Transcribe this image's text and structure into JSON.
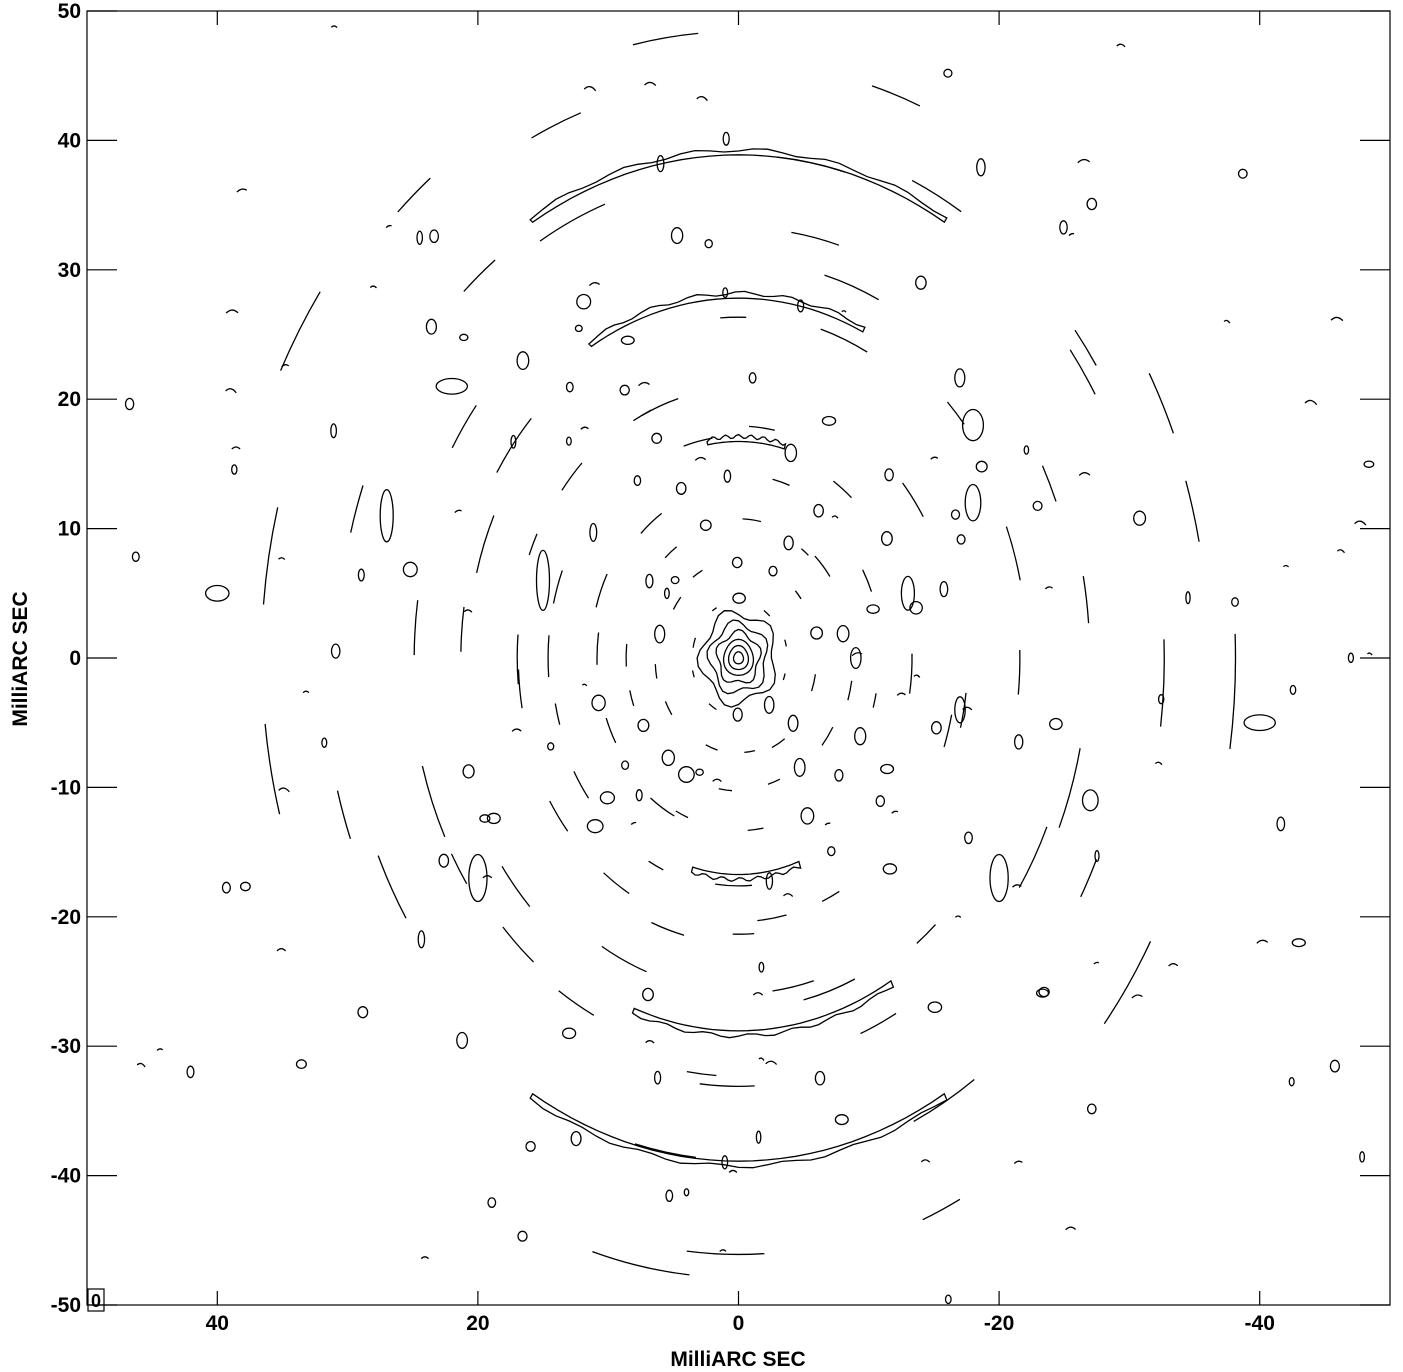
{
  "chart_data": {
    "type": "contour",
    "xlabel": "MilliARC SEC",
    "ylabel": "MilliARC SEC",
    "xlim": [
      50,
      -50
    ],
    "ylim": [
      -50,
      50
    ],
    "x_ticks": [
      40,
      20,
      0,
      -20,
      -40
    ],
    "x_tick_labels": [
      "40",
      "20",
      "0",
      "-20",
      "-40"
    ],
    "y_ticks": [
      50,
      40,
      30,
      20,
      10,
      0,
      -10,
      -20,
      -30,
      -40,
      -50
    ],
    "y_tick_labels": [
      "50",
      "40",
      "30",
      "20",
      "10",
      "0",
      "-10",
      "-20",
      "-30",
      "-40",
      "-50"
    ],
    "beam_label": "0",
    "peak": {
      "x": 0,
      "y": 0
    },
    "core_levels_radii_mas": [
      0.4,
      0.8,
      1.2,
      1.7,
      2.3,
      3.0
    ],
    "rings": [
      {
        "radius_mas": 4.5,
        "arcs": 10
      },
      {
        "radius_mas": 7.5,
        "arcs": 14
      },
      {
        "radius_mas": 10.5,
        "arcs": 16
      },
      {
        "radius_mas": 13.5,
        "arcs": 18
      },
      {
        "radius_mas": 17.0,
        "arcs": 20
      },
      {
        "radius_mas": 21.0,
        "arcs": 20
      },
      {
        "radius_mas": 26.5,
        "arcs": 22
      },
      {
        "radius_mas": 31.5,
        "arcs": 22
      },
      {
        "radius_mas": 38.5,
        "arcs": 24
      },
      {
        "radius_mas": 46.0,
        "arcs": 18
      }
    ],
    "arcs": [
      {
        "cx": 0,
        "cy": 0,
        "r": 39,
        "ry_scale": 1.0,
        "a0": 60,
        "a1": 120
      },
      {
        "cx": 0,
        "cy": 0,
        "r": 28,
        "ry_scale": 1.0,
        "a0": 65,
        "a1": 120
      },
      {
        "cx": 0,
        "cy": 0,
        "r": 39,
        "ry_scale": 1.0,
        "a0": 240,
        "a1": 300
      },
      {
        "cx": 0,
        "cy": 0,
        "r": 29,
        "ry_scale": 1.0,
        "a0": 250,
        "a1": 300
      },
      {
        "cx": 0,
        "cy": 0,
        "r": 17,
        "ry_scale": 1.0,
        "a0": 255,
        "a1": 290
      },
      {
        "cx": 0,
        "cy": 0,
        "r": 17,
        "ry_scale": 1.0,
        "a0": 75,
        "a1": 100
      }
    ],
    "blobs": [
      {
        "x": 40,
        "y": 5,
        "rx": 0.9,
        "ry": 0.6
      },
      {
        "x": -40,
        "y": -5,
        "rx": 1.2,
        "ry": 0.6
      },
      {
        "x": -18,
        "y": 18,
        "rx": 0.8,
        "ry": 1.2
      },
      {
        "x": -18,
        "y": 12,
        "rx": 0.6,
        "ry": 1.4
      },
      {
        "x": 27,
        "y": 11,
        "rx": 0.5,
        "ry": 2.0
      },
      {
        "x": 20,
        "y": -17,
        "rx": 0.7,
        "ry": 1.8
      },
      {
        "x": -20,
        "y": -17,
        "rx": 0.7,
        "ry": 1.8
      },
      {
        "x": 22,
        "y": 21,
        "rx": 1.2,
        "ry": 0.6
      },
      {
        "x": 15,
        "y": 6,
        "rx": 0.5,
        "ry": 2.3
      },
      {
        "x": -13,
        "y": 5,
        "rx": 0.5,
        "ry": 1.3
      },
      {
        "x": -17,
        "y": -4,
        "rx": 0.4,
        "ry": 1.0
      },
      {
        "x": -9,
        "y": 0,
        "rx": 0.4,
        "ry": 0.8
      },
      {
        "x": 11,
        "y": -13,
        "rx": 0.6,
        "ry": 0.5
      },
      {
        "x": 4,
        "y": -9,
        "rx": 0.6,
        "ry": 0.6
      },
      {
        "x": -27,
        "y": -11,
        "rx": 0.6,
        "ry": 0.8
      },
      {
        "x": -14,
        "y": 29,
        "rx": 0.4,
        "ry": 0.5
      },
      {
        "x": 13,
        "y": -29,
        "rx": 0.5,
        "ry": 0.4
      },
      {
        "x": -43,
        "y": -22,
        "rx": 0.5,
        "ry": 0.3
      }
    ]
  }
}
